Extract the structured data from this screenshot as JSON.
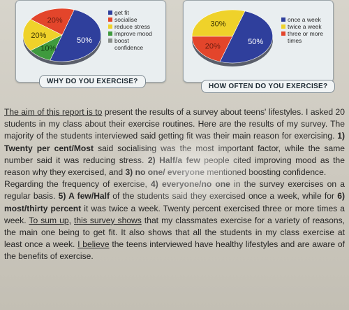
{
  "chart_data": [
    {
      "type": "pie",
      "title": "WHY DO YOU EXERCISE?",
      "categories": [
        "get fit",
        "socialise",
        "reduce stress",
        "improve mood",
        "boost confidence"
      ],
      "values": [
        50,
        20,
        20,
        10,
        0
      ],
      "labels": [
        "50%",
        "20%",
        "20%",
        "10%"
      ],
      "colors": [
        "#2f3f9c",
        "#e3452b",
        "#efd22a",
        "#3f9a3e",
        "#8a8f8a"
      ]
    },
    {
      "type": "pie",
      "title": "HOW OFTEN DO YOU EXERCISE?",
      "categories": [
        "once a week",
        "twice a week",
        "three or more times"
      ],
      "values": [
        50,
        30,
        20
      ],
      "labels": [
        "50%",
        "30%",
        "20%"
      ],
      "colors": [
        "#2f3f9c",
        "#efd22a",
        "#e3452b"
      ]
    }
  ],
  "report": {
    "intro_lead": "The aim of this report is to",
    "intro_rest": " present the results of a survey about teens' lifestyles. I asked 20 students in my class about their exercise routines. Here are the results of my survey. The majority of the students interviewed said getting fit was their main reason for exercising. ",
    "opt1": "1) Twenty per cent/Most",
    "s1b": " said socialising was the most important factor, while the same number said it was reducing stress. ",
    "opt2": "2) Half/a few",
    "s2b": " people cited improving mood as the reason why they exercised, and ",
    "opt3": "3) no one/ everyone",
    "s3b": " mentioned boosting confidence.",
    "p2a": "Regarding the frequency of exercise, ",
    "opt4": "4) everyone/no one",
    "p2b": " in the survey exercises on a regular basis. ",
    "opt5": "5) A few/Half",
    "p2c": " of the students said they exercised once a week, while for ",
    "opt6": "6) most/thirty percent",
    "p2d": " it was twice a week. Twenty percent exercised three or more times a week. ",
    "sum_up": "To sum up,",
    "p2e": " ",
    "shows": "this survey shows",
    "p2f": " that my classmates exercise for a variety of reasons, the main one being to get fit. It also shows that all the students in my class exercise at least once a week. ",
    "believe": "I believe",
    "p2g": " the teens interviewed have healthy lifestyles and are aware of the benefits of exercise."
  }
}
